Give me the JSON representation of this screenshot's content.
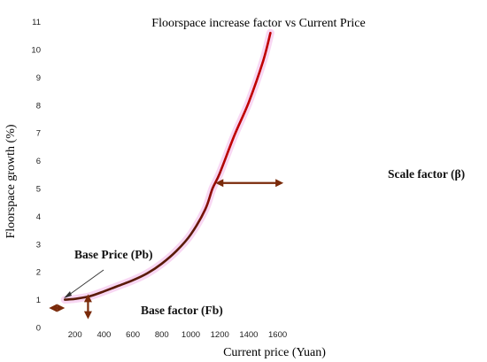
{
  "chart_data": {
    "type": "line",
    "title": "Floorspace increase factor vs Current Price",
    "xlabel": "Current price (Yuan)",
    "ylabel": "Floorspace growth  (%)",
    "xlim": [
      0,
      1650
    ],
    "ylim": [
      0,
      11.5
    ],
    "x_ticks": [
      "200",
      "400",
      "600",
      "800",
      "1000",
      "1200",
      "1400",
      "1600"
    ],
    "y_ticks": [
      "0",
      "1",
      "2",
      "3",
      "4",
      "5",
      "6",
      "7",
      "8",
      "9",
      "10",
      "11"
    ],
    "grid": false,
    "series": [
      {
        "x": [
          130,
          200,
          300,
          400,
          500,
          600,
          700,
          800,
          900,
          1000,
          1100,
          1150,
          1200,
          1300,
          1400,
          1500,
          1550
        ],
        "y": [
          1.0,
          1.03,
          1.12,
          1.3,
          1.5,
          1.7,
          1.95,
          2.3,
          2.75,
          3.35,
          4.25,
          5.0,
          5.55,
          6.9,
          8.1,
          9.6,
          10.6
        ]
      }
    ],
    "annotations": [
      {
        "name": "base-price",
        "text": "Base Price (Pb)",
        "arrow": "double-horizontal",
        "x_range": [
          0,
          130
        ],
        "y": 0.7
      },
      {
        "name": "base-factor",
        "text": "Base factor (Fb)",
        "arrow": "double-vertical",
        "x": 290,
        "y_range": [
          0.3,
          1.2
        ]
      },
      {
        "name": "scale-factor",
        "text": "Scale factor (β)",
        "arrow": "double-horizontal",
        "x_range": [
          1170,
          1640
        ],
        "y": 5.2
      }
    ],
    "colors": {
      "line_high": "#c00000",
      "line_low": "#5a1a08",
      "arrow": "#7a2a0a",
      "highlight": "#f6c9ef"
    }
  }
}
